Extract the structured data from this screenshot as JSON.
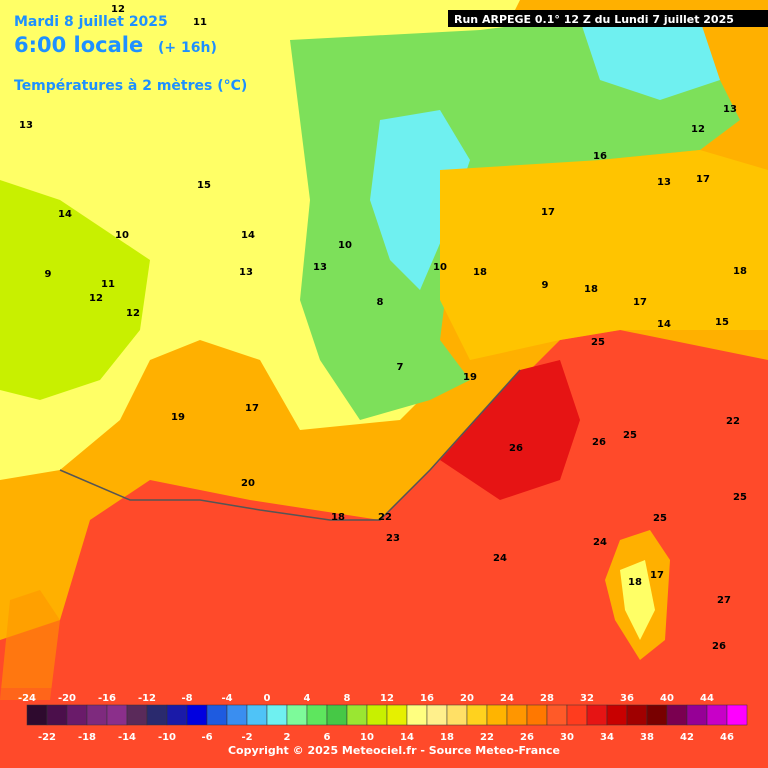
{
  "header": {
    "date": "Mardi 8 juillet 2025",
    "time": "6:00 locale",
    "lead": "(+ 16h)",
    "variable": "Températures à 2 mètres (°C)"
  },
  "run": "Run ARPEGE 0.1° 12 Z du Lundi 7 juillet 2025",
  "footer": "Copyright © 2025 Meteociel.fr - Source Meteo-France",
  "colorbar": {
    "values": [
      -24,
      -22,
      -20,
      -18,
      -16,
      -14,
      -12,
      -10,
      -8,
      -6,
      -4,
      -2,
      0,
      2,
      4,
      6,
      8,
      10,
      12,
      14,
      16,
      18,
      20,
      22,
      24,
      26,
      28,
      30,
      32,
      34,
      36,
      38,
      40,
      42,
      44,
      46
    ],
    "colors": [
      "#2e0a2e",
      "#4b0f4b",
      "#6a1b6a",
      "#7e2a7e",
      "#8b2f8b",
      "#5a2a5a",
      "#2a2a6e",
      "#1a1aa8",
      "#0000e0",
      "#1e5be0",
      "#3a8ef0",
      "#4fc3f7",
      "#6ff0f0",
      "#7dfa9a",
      "#5ee65e",
      "#46c846",
      "#9ae632",
      "#c8f000",
      "#e6f000",
      "#ffff80",
      "#fff08c",
      "#ffe066",
      "#ffd21e",
      "#ffb400",
      "#ff9600",
      "#ff7800",
      "#ff5a28",
      "#ff3c1e",
      "#e61414",
      "#c80000",
      "#a00000",
      "#780000",
      "#7a0050",
      "#960096",
      "#c800c8",
      "#ff00ff"
    ]
  },
  "map_labels": [
    "12",
    "11",
    "13",
    "14",
    "10",
    "9",
    "11",
    "12",
    "13",
    "15",
    "12",
    "14",
    "13",
    "10",
    "8",
    "7",
    "10",
    "9",
    "13",
    "17",
    "18",
    "17",
    "16",
    "18",
    "19",
    "20",
    "18",
    "17",
    "22",
    "23",
    "24",
    "25",
    "25",
    "26",
    "26",
    "25",
    "24",
    "22",
    "25",
    "27",
    "26",
    "17",
    "18",
    "18",
    "17",
    "14",
    "15",
    "12",
    "13",
    "19"
  ]
}
